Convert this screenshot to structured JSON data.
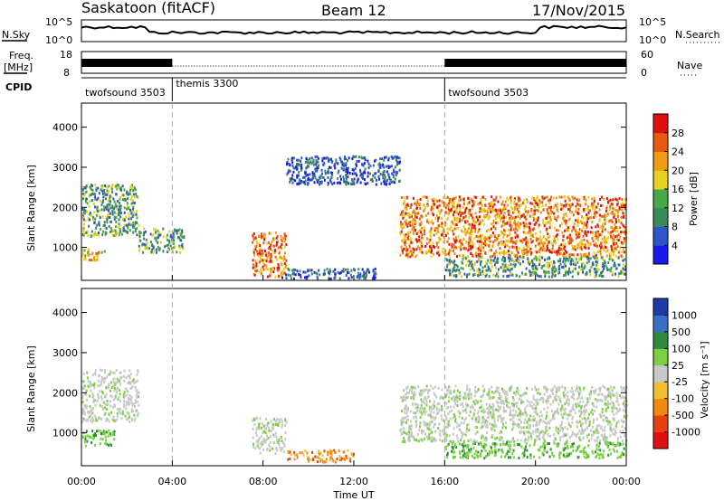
{
  "header": {
    "station": "Saskatoon (fitACF)",
    "beam": "Beam 12",
    "date": "17/Nov/2015"
  },
  "noise_panel": {
    "left_label": "N.Sky",
    "right_label": "N.Search",
    "left_ticks": [
      "10^5",
      "10^0"
    ],
    "right_ticks": [
      "10^5",
      "10^0"
    ]
  },
  "freq_panel": {
    "left_label_top": "Freq.",
    "left_label_unit": "[MHz]",
    "left_ticks": [
      "18",
      "8"
    ],
    "right_label": "Nave",
    "right_ticks": [
      "60",
      "0"
    ]
  },
  "cpid": {
    "label": "CPID",
    "segments": [
      {
        "name": "twofsound 3503",
        "start_hour": 0,
        "end_hour": 4
      },
      {
        "name": "themis 3300",
        "start_hour": 4,
        "end_hour": 16
      },
      {
        "name": "twofsound 3503",
        "start_hour": 16,
        "end_hour": 24
      }
    ]
  },
  "x_axis": {
    "label": "Time UT",
    "ticks": [
      "00:00",
      "04:00",
      "08:00",
      "12:00",
      "16:00",
      "20:00",
      "00:00"
    ]
  },
  "power_panel": {
    "ylabel": "Slant Range [km]",
    "yticks": [
      "4000",
      "3000",
      "2000",
      "1000"
    ],
    "colorbar_label": "Power [dB]",
    "colorbar_ticks": [
      "28",
      "24",
      "20",
      "16",
      "12",
      "8",
      "4"
    ],
    "colors": [
      "#1a1aee",
      "#2f55c8",
      "#3a8a5a",
      "#46a846",
      "#e8d020",
      "#f09a10",
      "#e85a10",
      "#e01010"
    ]
  },
  "velocity_panel": {
    "ylabel": "Slant Range [km]",
    "yticks": [
      "4000",
      "3000",
      "2000",
      "1000"
    ],
    "colorbar_label": "Velocity [m s⁻¹]",
    "colorbar_ticks": [
      "1000",
      "500",
      "100",
      "25",
      "-25",
      "-100",
      "-500",
      "-1000"
    ],
    "colors": [
      "#1c3aa8",
      "#3a6fc8",
      "#2e8a3e",
      "#7ad040",
      "#c8c8c8",
      "#f0c030",
      "#f08a10",
      "#e84010",
      "#e01010"
    ]
  },
  "chart_data": {
    "type": "heatmap",
    "title": "Saskatoon (fitACF)  Beam 12  17/Nov/2015",
    "xlabel": "Time UT",
    "ylabel": "Slant Range [km]",
    "xlim_hours": [
      0,
      24
    ],
    "ylim_km": [
      180,
      4600
    ],
    "grid": false,
    "power_regions": [
      {
        "t0": 0.0,
        "t1": 1.0,
        "r0": 700,
        "r1": 1000,
        "level": "mid-high"
      },
      {
        "t0": 0.0,
        "t1": 2.5,
        "r0": 1300,
        "r1": 2600,
        "level": "low-mid"
      },
      {
        "t0": 2.5,
        "t1": 4.5,
        "r0": 900,
        "r1": 1500,
        "level": "low-mid"
      },
      {
        "t0": 7.5,
        "t1": 9.0,
        "r0": 300,
        "r1": 1400,
        "level": "high"
      },
      {
        "t0": 8.8,
        "t1": 13.0,
        "r0": 250,
        "r1": 500,
        "level": "low"
      },
      {
        "t0": 9.0,
        "t1": 14.0,
        "r0": 2600,
        "r1": 3300,
        "level": "low"
      },
      {
        "t0": 14.0,
        "t1": 24.0,
        "r0": 800,
        "r1": 2300,
        "level": "high"
      },
      {
        "t0": 16.0,
        "t1": 24.0,
        "r0": 300,
        "r1": 800,
        "level": "low-mid"
      }
    ],
    "velocity_regions": [
      {
        "t0": 0.0,
        "t1": 2.5,
        "r0": 1300,
        "r1": 2600,
        "class": "-25..25"
      },
      {
        "t0": 0.0,
        "t1": 1.5,
        "r0": 700,
        "r1": 1100,
        "class": "25..100"
      },
      {
        "t0": 7.5,
        "t1": 9.0,
        "r0": 500,
        "r1": 1400,
        "class": "-25..25"
      },
      {
        "t0": 9.0,
        "t1": 12.0,
        "r0": 300,
        "r1": 600,
        "class": "-100..-500"
      },
      {
        "t0": 14.0,
        "t1": 24.0,
        "r0": 800,
        "r1": 2200,
        "class": "-25..25"
      },
      {
        "t0": 16.0,
        "t1": 24.0,
        "r0": 400,
        "r1": 800,
        "class": "25..100"
      }
    ]
  }
}
